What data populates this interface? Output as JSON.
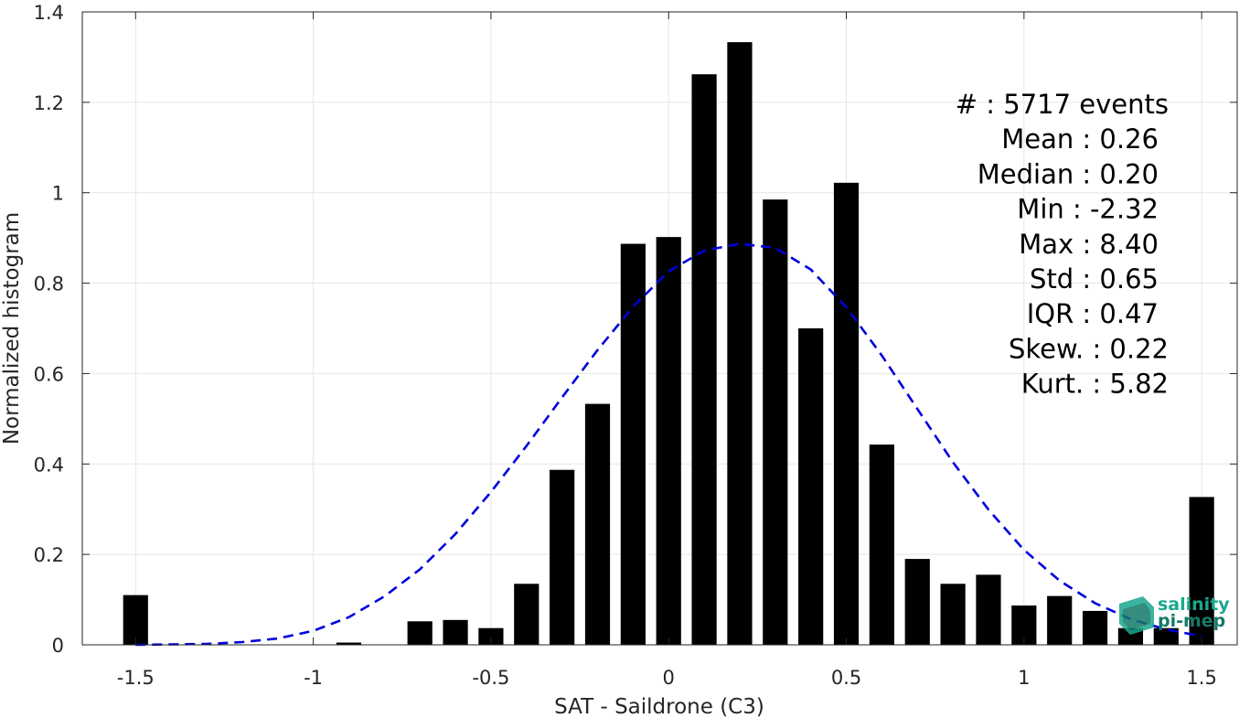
{
  "chart_data": {
    "type": "bar",
    "xlabel": "SAT - Saildrone (C3)",
    "ylabel": "Normalized histogram",
    "xlim": [
      -1.65,
      1.6
    ],
    "ylim": [
      0,
      1.4
    ],
    "xticks": [
      "-1.5",
      "-1",
      "-0.5",
      "0",
      "0.5",
      "1",
      "1.5"
    ],
    "xtick_values": [
      -1.5,
      -1,
      -0.5,
      0,
      0.5,
      1,
      1.5
    ],
    "yticks": [
      "0",
      "0.2",
      "0.4",
      "0.6",
      "0.8",
      "1",
      "1.2",
      "1.4"
    ],
    "ytick_values": [
      0,
      0.2,
      0.4,
      0.6,
      0.8,
      1,
      1.2,
      1.4
    ],
    "grid": true,
    "bar_color": "#000000",
    "bin_width": 0.1,
    "bars": [
      {
        "x": -1.5,
        "y": 0.11
      },
      {
        "x": -0.9,
        "y": 0.005
      },
      {
        "x": -0.7,
        "y": 0.052
      },
      {
        "x": -0.6,
        "y": 0.055
      },
      {
        "x": -0.5,
        "y": 0.037
      },
      {
        "x": -0.4,
        "y": 0.135
      },
      {
        "x": -0.3,
        "y": 0.387
      },
      {
        "x": -0.2,
        "y": 0.533
      },
      {
        "x": -0.1,
        "y": 0.887
      },
      {
        "x": 0.0,
        "y": 0.902
      },
      {
        "x": 0.1,
        "y": 1.262
      },
      {
        "x": 0.2,
        "y": 1.333
      },
      {
        "x": 0.3,
        "y": 0.985
      },
      {
        "x": 0.4,
        "y": 0.7
      },
      {
        "x": 0.5,
        "y": 1.022
      },
      {
        "x": 0.6,
        "y": 0.443
      },
      {
        "x": 0.7,
        "y": 0.19
      },
      {
        "x": 0.8,
        "y": 0.135
      },
      {
        "x": 0.9,
        "y": 0.155
      },
      {
        "x": 1.0,
        "y": 0.087
      },
      {
        "x": 1.1,
        "y": 0.108
      },
      {
        "x": 1.2,
        "y": 0.075
      },
      {
        "x": 1.3,
        "y": 0.037
      },
      {
        "x": 1.4,
        "y": 0.037
      },
      {
        "x": 1.5,
        "y": 0.327
      }
    ],
    "fit_curve": {
      "style": "dashed",
      "color": "#0000dd",
      "points": [
        [
          -1.5,
          0.0
        ],
        [
          -1.4,
          0.001
        ],
        [
          -1.3,
          0.002
        ],
        [
          -1.2,
          0.006
        ],
        [
          -1.1,
          0.014
        ],
        [
          -1.0,
          0.031
        ],
        [
          -0.9,
          0.061
        ],
        [
          -0.8,
          0.107
        ],
        [
          -0.7,
          0.167
        ],
        [
          -0.6,
          0.245
        ],
        [
          -0.5,
          0.338
        ],
        [
          -0.4,
          0.44
        ],
        [
          -0.3,
          0.547
        ],
        [
          -0.2,
          0.652
        ],
        [
          -0.1,
          0.748
        ],
        [
          0.0,
          0.826
        ],
        [
          0.1,
          0.872
        ],
        [
          0.2,
          0.887
        ],
        [
          0.3,
          0.878
        ],
        [
          0.4,
          0.83
        ],
        [
          0.5,
          0.747
        ],
        [
          0.6,
          0.64
        ],
        [
          0.7,
          0.522
        ],
        [
          0.8,
          0.404
        ],
        [
          0.9,
          0.299
        ],
        [
          1.0,
          0.21
        ],
        [
          1.1,
          0.142
        ],
        [
          1.2,
          0.092
        ],
        [
          1.3,
          0.057
        ],
        [
          1.4,
          0.034
        ],
        [
          1.5,
          0.019
        ]
      ]
    },
    "annotations": [
      {
        "label": "#  : 5717 events",
        "align": "end"
      },
      {
        "label": "Mean : 0.26",
        "align": "end"
      },
      {
        "label": "Median : 0.20",
        "align": "end"
      },
      {
        "label": "Min : -2.32",
        "align": "end"
      },
      {
        "label": "Max : 8.40",
        "align": "end"
      },
      {
        "label": "Std : 0.65",
        "align": "end"
      },
      {
        "label": "IQR : 0.47",
        "align": "end"
      },
      {
        "label": "Skew. : 0.22",
        "align": "end"
      },
      {
        "label": "Kurt. : 5.82",
        "align": "end"
      }
    ]
  },
  "logo": {
    "text_line1": "salinity",
    "text_line2": "pi-mep",
    "color": "#1aa88e"
  }
}
